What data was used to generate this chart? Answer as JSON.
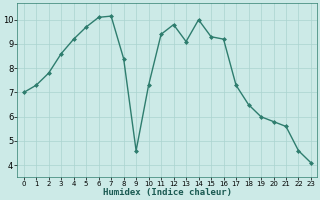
{
  "x": [
    0,
    1,
    2,
    3,
    4,
    5,
    6,
    7,
    8,
    9,
    10,
    11,
    12,
    13,
    14,
    15,
    16,
    17,
    18,
    19,
    20,
    21,
    22,
    23
  ],
  "y": [
    7.0,
    7.3,
    7.8,
    8.6,
    9.2,
    9.7,
    10.1,
    10.15,
    8.4,
    4.6,
    7.3,
    9.4,
    9.8,
    9.1,
    10.0,
    9.3,
    9.2,
    7.3,
    6.5,
    6.0,
    5.8,
    5.6,
    4.6,
    4.1
  ],
  "line_color": "#2e7d6e",
  "marker": "D",
  "marker_size": 2,
  "bg_color": "#cceae7",
  "grid_color": "#aad4d0",
  "xlabel": "Humidex (Indice chaleur)",
  "xlim": [
    -0.5,
    23.5
  ],
  "ylim": [
    3.5,
    10.7
  ],
  "yticks": [
    4,
    5,
    6,
    7,
    8,
    9,
    10
  ],
  "xticks": [
    0,
    1,
    2,
    3,
    4,
    5,
    6,
    7,
    8,
    9,
    10,
    11,
    12,
    13,
    14,
    15,
    16,
    17,
    18,
    19,
    20,
    21,
    22,
    23
  ]
}
